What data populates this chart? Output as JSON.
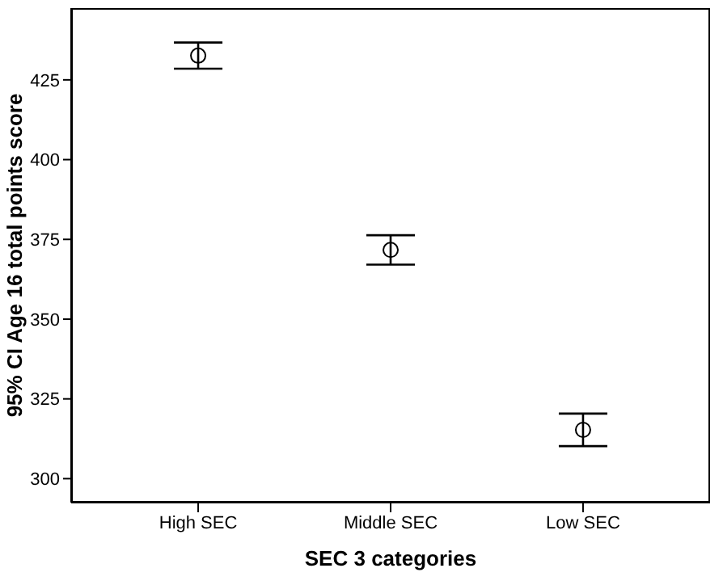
{
  "chart_data": {
    "type": "scatter",
    "xlabel": "SEC 3 categories",
    "ylabel": "95% CI Age 16 total points score",
    "categories": [
      "High SEC",
      "Middle SEC",
      "Low SEC"
    ],
    "values": [
      432.6,
      371.7,
      315.3
    ],
    "errors": [
      4.1,
      4.6,
      5.1
    ],
    "color": "#000000",
    "marker": "circle",
    "ylim": [
      292.5,
      447.5
    ],
    "yticks": [
      300,
      325,
      350,
      375,
      400,
      425
    ],
    "grid": false,
    "legend": false
  }
}
